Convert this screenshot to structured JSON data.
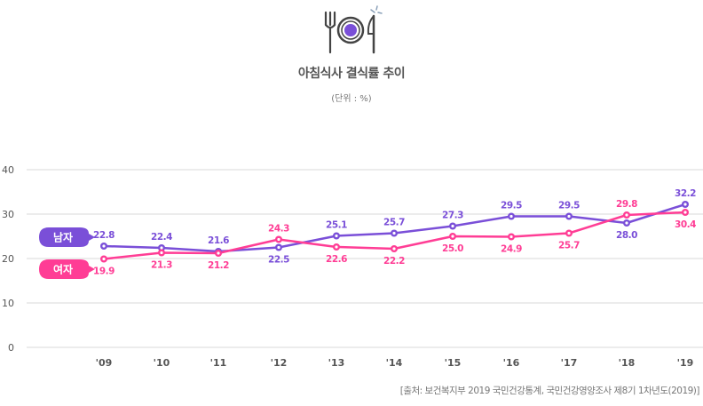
{
  "header": {
    "icon": "plate-fork-knife-icon",
    "title": "아침식사 결식률 추이",
    "unit": "(단위 : %)"
  },
  "colors": {
    "male": "#7a4fd8",
    "female": "#ff3d95",
    "grid": "#d9d9d9",
    "axis_text": "#555555"
  },
  "legend": {
    "male": "남자",
    "female": "여자"
  },
  "source": "[출처: 보건복지부 2019 국민건강통계, 국민건강영양조사 제8기 1차년도(2019)]",
  "chart_data": {
    "type": "line",
    "title": "아침식사 결식률 추이",
    "subtitle": "(단위 : %)",
    "xlabel": "",
    "ylabel": "",
    "categories": [
      "'09",
      "'10",
      "'11",
      "'12",
      "'13",
      "'14",
      "'15",
      "'16",
      "'17",
      "'18",
      "'19"
    ],
    "series": [
      {
        "name": "남자",
        "color": "#7a4fd8",
        "values": [
          22.8,
          22.4,
          21.6,
          22.5,
          25.1,
          25.7,
          27.3,
          29.5,
          29.5,
          28.0,
          32.2
        ]
      },
      {
        "name": "여자",
        "color": "#ff3d95",
        "values": [
          19.9,
          21.3,
          21.2,
          24.3,
          22.6,
          22.2,
          25.0,
          24.9,
          25.7,
          29.8,
          30.4
        ]
      }
    ],
    "yticks": [
      0,
      10,
      20,
      30,
      40
    ],
    "ylim": [
      0,
      40
    ],
    "grid": true,
    "legend_position": "left, callout labels"
  }
}
